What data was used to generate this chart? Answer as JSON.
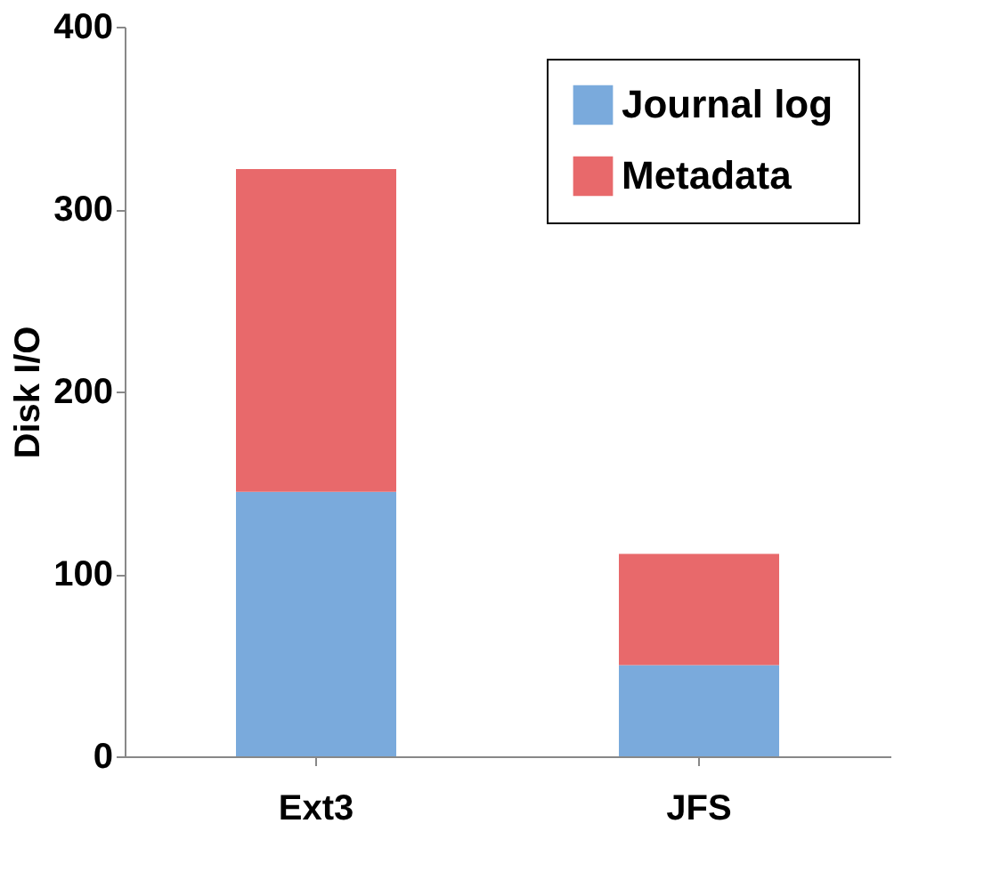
{
  "chart_data": {
    "type": "bar",
    "stacked": true,
    "ylabel": "Disk I/O",
    "categories": [
      "Ext3",
      "JFS"
    ],
    "series": [
      {
        "name": "Journal log",
        "color": "#7aaadc",
        "values": [
          145,
          50
        ]
      },
      {
        "name": "Metadata",
        "color": "#e8696b",
        "values": [
          177,
          61
        ]
      }
    ],
    "ylim": [
      0,
      400
    ],
    "yticks": [
      0,
      100,
      200,
      300,
      400
    ],
    "grid": false,
    "legend": "top right"
  }
}
